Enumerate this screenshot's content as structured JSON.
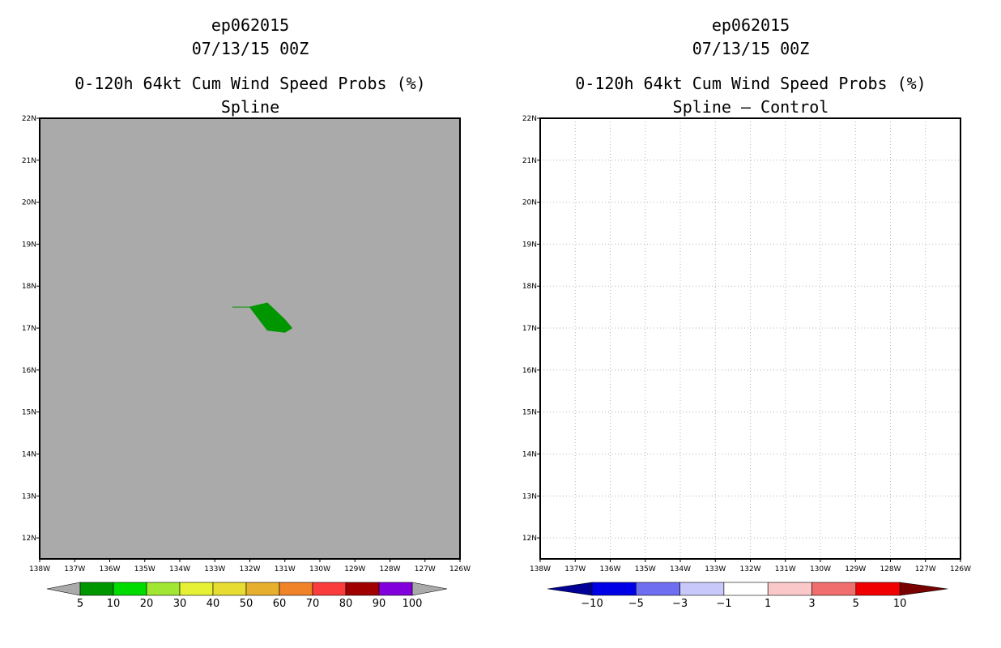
{
  "panels": [
    {
      "line1": "ep062015",
      "line2": "07/13/15 00Z",
      "line3": "0-120h 64kt Cum Wind Speed Probs (%)",
      "line4": "Spline"
    },
    {
      "line1": "ep062015",
      "line2": "07/13/15 00Z",
      "line3": "0-120h 64kt Cum Wind Speed Probs (%)",
      "line4": "Spline – Control"
    }
  ],
  "chart_data": [
    {
      "type": "heatmap",
      "title": "0-120h 64kt Cum Wind Speed Probs (%)",
      "subtitle": "Spline",
      "x_ticks": [
        "138W",
        "137W",
        "136W",
        "135W",
        "134W",
        "133W",
        "132W",
        "131W",
        "130W",
        "129W",
        "128W",
        "127W",
        "126W"
      ],
      "y_ticks": [
        "12N",
        "13N",
        "14N",
        "15N",
        "16N",
        "17N",
        "18N",
        "19N",
        "20N",
        "21N",
        "22N"
      ],
      "xlim": [
        -138,
        -126
      ],
      "ylim": [
        11.5,
        22
      ],
      "grid": false,
      "background_color": "#aaaaaa",
      "regions": [
        {
          "color": "#009600",
          "bin": "5-10",
          "polygon_lonlat": [
            [
              -132.5,
              17.5
            ],
            [
              -132.0,
              17.5
            ],
            [
              -131.5,
              17.6
            ],
            [
              -131.0,
              17.2
            ],
            [
              -130.8,
              17.0
            ],
            [
              -131.0,
              16.9
            ],
            [
              -131.5,
              16.95
            ],
            [
              -132.0,
              17.5
            ]
          ]
        }
      ],
      "colorbar": {
        "labels": [
          "5",
          "10",
          "20",
          "30",
          "40",
          "50",
          "60",
          "70",
          "80",
          "90",
          "100"
        ],
        "colors": [
          "#009600",
          "#00dc00",
          "#a0e632",
          "#e6f034",
          "#e6dc32",
          "#e6af2d",
          "#f08228",
          "#fa3c3c",
          "#a00000",
          "#8200dc"
        ],
        "end_color": "#aaaaaa"
      }
    },
    {
      "type": "heatmap",
      "title": "0-120h 64kt Cum Wind Speed Probs (%)",
      "subtitle": "Spline – Control",
      "x_ticks": [
        "138W",
        "137W",
        "136W",
        "135W",
        "134W",
        "133W",
        "132W",
        "131W",
        "130W",
        "129W",
        "128W",
        "127W",
        "126W"
      ],
      "y_ticks": [
        "12N",
        "13N",
        "14N",
        "15N",
        "16N",
        "17N",
        "18N",
        "19N",
        "20N",
        "21N",
        "22N"
      ],
      "xlim": [
        -138,
        -126
      ],
      "ylim": [
        11.5,
        22
      ],
      "grid": true,
      "background_color": "#ffffff",
      "regions": [],
      "colorbar": {
        "labels": [
          "−10",
          "−5",
          "−3",
          "−1",
          "1",
          "3",
          "5",
          "10"
        ],
        "colors": [
          "#0000e6",
          "#6e6ef0",
          "#c8c8fa",
          "#ffffff",
          "#fac8c8",
          "#f06e6e",
          "#f00000"
        ],
        "low_end_color": "#000096",
        "high_end_color": "#780000"
      }
    }
  ]
}
